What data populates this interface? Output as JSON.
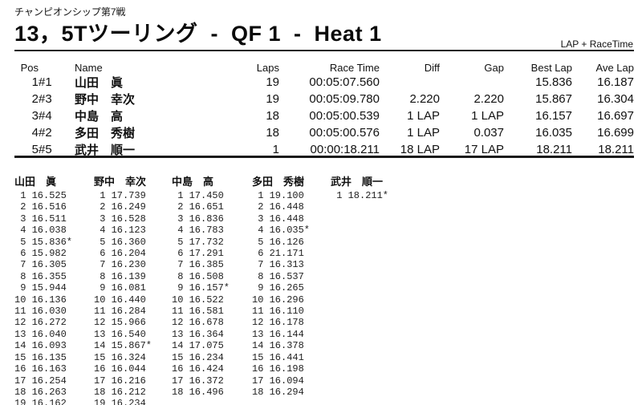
{
  "header": {
    "series": "チャンピオンシップ第7戦",
    "title": "13，5Tツーリング  -  QF 1  -  Heat 1",
    "timing_mode": "LAP + RaceTime"
  },
  "results": {
    "columns": [
      {
        "key": "pos",
        "label": "Pos"
      },
      {
        "key": "car",
        "label": ""
      },
      {
        "key": "name",
        "label": "Name"
      },
      {
        "key": "laps",
        "label": "Laps"
      },
      {
        "key": "race_time",
        "label": "Race Time"
      },
      {
        "key": "diff",
        "label": "Diff"
      },
      {
        "key": "gap",
        "label": "Gap"
      },
      {
        "key": "best_lap",
        "label": "Best Lap"
      },
      {
        "key": "ave_lap",
        "label": "Ave Lap"
      }
    ],
    "rows": [
      {
        "pos": "1",
        "car": "#1",
        "name": "山田　眞",
        "laps": "19",
        "race_time": "00:05:07.560",
        "diff": "",
        "gap": "",
        "best_lap": "15.836",
        "ave_lap": "16.187"
      },
      {
        "pos": "2",
        "car": "#3",
        "name": "野中　幸次",
        "laps": "19",
        "race_time": "00:05:09.780",
        "diff": "2.220",
        "gap": "2.220",
        "best_lap": "15.867",
        "ave_lap": "16.304"
      },
      {
        "pos": "3",
        "car": "#4",
        "name": "中島　高",
        "laps": "18",
        "race_time": "00:05:00.539",
        "diff": "1 LAP",
        "gap": "1 LAP",
        "best_lap": "16.157",
        "ave_lap": "16.697"
      },
      {
        "pos": "4",
        "car": "#2",
        "name": "多田　秀樹",
        "laps": "18",
        "race_time": "00:05:00.576",
        "diff": "1 LAP",
        "gap": "0.037",
        "best_lap": "16.035",
        "ave_lap": "16.699"
      },
      {
        "pos": "5",
        "car": "#5",
        "name": "武井　順一",
        "laps": "1",
        "race_time": "00:00:18.211",
        "diff": "18 LAP",
        "gap": "17 LAP",
        "best_lap": "18.211",
        "ave_lap": "18.211"
      }
    ]
  },
  "lap_charts": [
    {
      "driver": "山田　眞",
      "laps": [
        "16.525",
        "16.516",
        "16.511",
        "16.038",
        "15.836*",
        "15.982",
        "16.305",
        "16.355",
        "15.944",
        "16.136",
        "16.030",
        "16.272",
        "16.040",
        "16.093",
        "16.135",
        "16.163",
        "16.254",
        "16.263",
        "16.162"
      ]
    },
    {
      "driver": "野中　幸次",
      "laps": [
        "17.739",
        "16.249",
        "16.528",
        "16.123",
        "16.360",
        "16.204",
        "16.230",
        "16.139",
        "16.081",
        "16.440",
        "16.284",
        "15.966",
        "16.540",
        "15.867*",
        "16.324",
        "16.044",
        "16.216",
        "16.212",
        "16.234"
      ]
    },
    {
      "driver": "中島　高",
      "laps": [
        "17.450",
        "16.651",
        "16.836",
        "16.783",
        "17.732",
        "17.291",
        "16.385",
        "16.508",
        "16.157*",
        "16.522",
        "16.581",
        "16.678",
        "16.364",
        "17.075",
        "16.234",
        "16.424",
        "16.372",
        "16.496"
      ]
    },
    {
      "driver": "多田　秀樹",
      "laps": [
        "19.100",
        "16.448",
        "16.448",
        "16.035*",
        "16.126",
        "21.171",
        "16.313",
        "16.537",
        "16.265",
        "16.296",
        "16.110",
        "16.178",
        "16.144",
        "16.378",
        "16.441",
        "16.198",
        "16.094",
        "16.294"
      ]
    },
    {
      "driver": "武井　順一",
      "laps": [
        "18.211*"
      ]
    }
  ]
}
